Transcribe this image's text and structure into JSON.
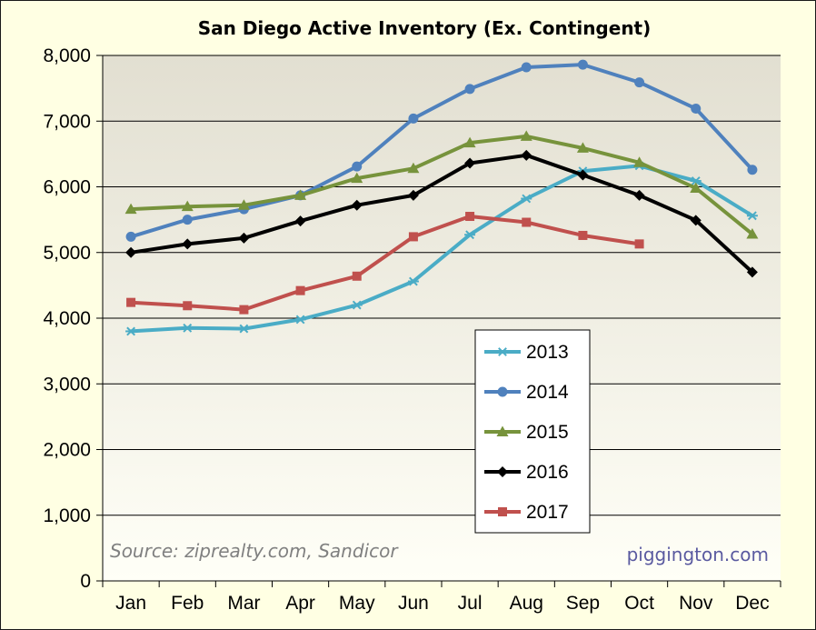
{
  "chart_data": {
    "type": "line",
    "title": "San Diego Active Inventory (Ex. Contingent)",
    "xlabel": "",
    "ylabel": "",
    "categories": [
      "Jan",
      "Feb",
      "Mar",
      "Apr",
      "May",
      "Jun",
      "Jul",
      "Aug",
      "Sep",
      "Oct",
      "Nov",
      "Dec"
    ],
    "ylim": [
      0,
      8000
    ],
    "yticks": [
      "0",
      "1,000",
      "2,000",
      "3,000",
      "4,000",
      "5,000",
      "6,000",
      "7,000",
      "8,000"
    ],
    "grid": true,
    "legend_position": "center-right",
    "series": [
      {
        "name": "2013",
        "color": "#4aacc6",
        "marker": "asterisk",
        "values": [
          3800,
          3850,
          3840,
          3980,
          4200,
          4560,
          5270,
          5820,
          6240,
          6320,
          6090,
          5560
        ]
      },
      {
        "name": "2014",
        "color": "#4f81bd",
        "marker": "circle",
        "values": [
          5240,
          5500,
          5660,
          5870,
          6310,
          7040,
          7490,
          7820,
          7860,
          7590,
          7190,
          6260
        ]
      },
      {
        "name": "2015",
        "color": "#77933c",
        "marker": "triangle",
        "values": [
          5660,
          5700,
          5720,
          5870,
          6130,
          6280,
          6670,
          6770,
          6590,
          6370,
          5980,
          5280
        ]
      },
      {
        "name": "2016",
        "color": "#000000",
        "marker": "diamond",
        "values": [
          5000,
          5130,
          5220,
          5480,
          5720,
          5870,
          6360,
          6480,
          6180,
          5870,
          5490,
          4700
        ]
      },
      {
        "name": "2017",
        "color": "#c0504d",
        "marker": "square",
        "values": [
          4240,
          4190,
          4130,
          4420,
          4640,
          5240,
          5550,
          5460,
          5260,
          5130,
          null,
          null
        ]
      }
    ],
    "annotations": {
      "source": "Source: ziprealty.com, Sandicor",
      "credit": "piggington.com"
    }
  },
  "colors": {
    "background": "#ffffe3",
    "plot_top": "#e2dfd1",
    "plot_bottom": "#fffff7",
    "gridline": "#000000"
  }
}
